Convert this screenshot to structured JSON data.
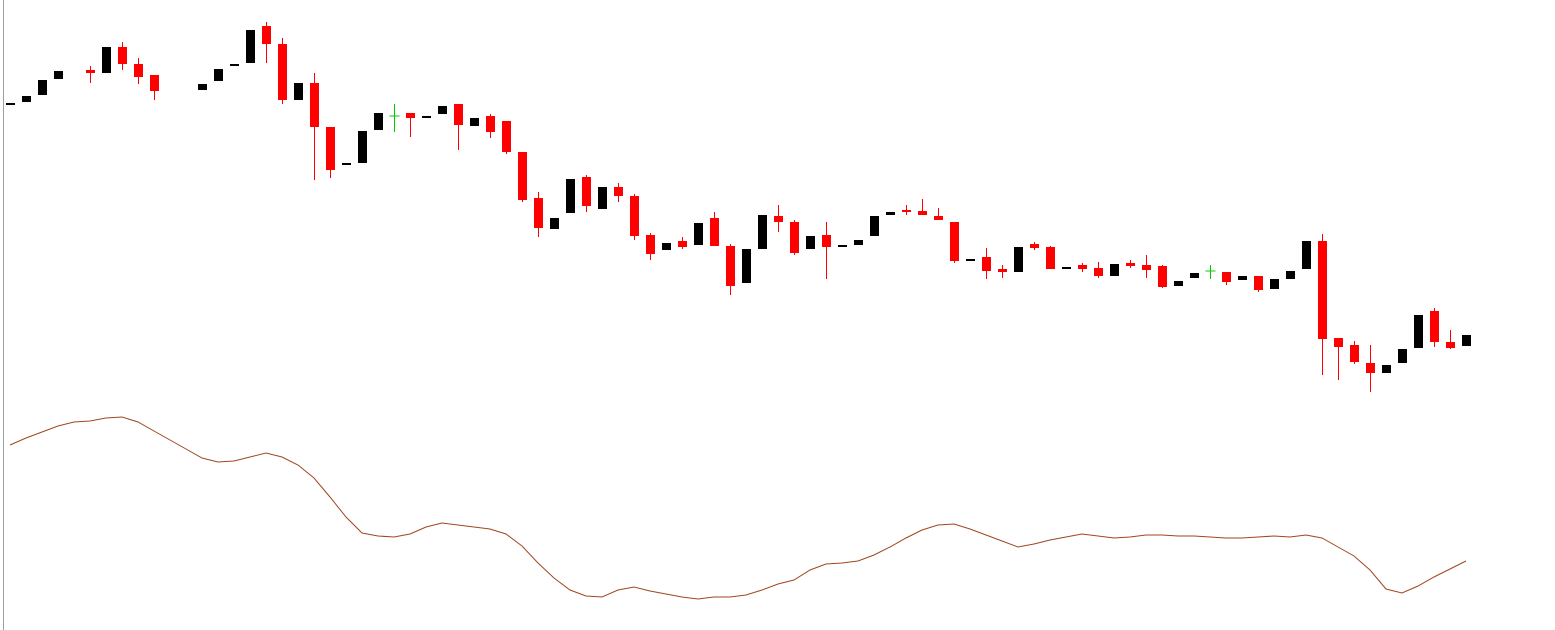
{
  "chart_data": [
    {
      "type": "candlestick",
      "up_color": "#000000",
      "down_color": "#ff0000",
      "doji_color": "#00cc00",
      "ylim": [
        0,
        630
      ],
      "open": [
        526,
        528,
        535,
        551,
        null,
        560,
        557,
        583,
        566,
        555,
        null,
        null,
        540,
        549,
        565,
        567,
        604,
        586,
        530,
        547,
        503,
        466,
        467,
        500,
        514,
        517,
        513,
        516,
        526,
        504,
        514,
        509,
        478,
        432,
        401,
        417,
        453,
        421,
        443,
        434,
        395,
        380,
        389,
        385,
        412,
        384,
        347,
        381,
        414,
        408,
        381,
        395,
        384,
        385,
        394,
        415,
        420,
        419,
        414,
        408,
        370,
        373,
        361,
        358,
        386,
        383,
        362,
        365,
        362,
        354,
        367,
        365,
        364,
        344,
        352,
        359,
        358,
        350,
        354,
        341,
        351,
        361,
        389,
        292,
        285,
        267,
        257,
        267,
        282,
        319,
        288,
        284
      ],
      "high": [
        527,
        534,
        550,
        559,
        null,
        564,
        583,
        588,
        572,
        555,
        null,
        null,
        546,
        561,
        566,
        600,
        608,
        592,
        547,
        557,
        503,
        467,
        499,
        517,
        526,
        517,
        514,
        524,
        526,
        512,
        516,
        509,
        478,
        438,
        412,
        451,
        455,
        443,
        447,
        436,
        397,
        387,
        393,
        407,
        418,
        386,
        381,
        415,
        425,
        410,
        394,
        408,
        385,
        390,
        414,
        418,
        425,
        431,
        422,
        408,
        371,
        382,
        365,
        383,
        388,
        384,
        363,
        367,
        368,
        366,
        370,
        375,
        365,
        349,
        357,
        365,
        358,
        354,
        354,
        351,
        359,
        389,
        396,
        292,
        289,
        285,
        265,
        281,
        315,
        322,
        300,
        295
      ],
      "low": [
        526,
        528,
        535,
        551,
        null,
        547,
        557,
        560,
        546,
        530,
        null,
        null,
        540,
        549,
        565,
        567,
        567,
        526,
        530,
        450,
        452,
        466,
        467,
        500,
        498,
        493,
        513,
        516,
        480,
        504,
        492,
        476,
        428,
        393,
        401,
        417,
        418,
        421,
        428,
        390,
        370,
        380,
        381,
        385,
        384,
        335,
        347,
        381,
        398,
        375,
        381,
        351,
        384,
        385,
        394,
        415,
        415,
        415,
        410,
        367,
        370,
        351,
        352,
        358,
        380,
        361,
        362,
        358,
        352,
        354,
        362,
        352,
        342,
        344,
        352,
        351,
        345,
        350,
        338,
        341,
        351,
        361,
        255,
        250,
        266,
        238,
        257,
        267,
        282,
        283,
        281,
        284
      ],
      "close": [
        527,
        534,
        550,
        559,
        null,
        557,
        583,
        566,
        553,
        539,
        null,
        null,
        546,
        561,
        566,
        600,
        586,
        530,
        547,
        503,
        460,
        467,
        499,
        517,
        514,
        512,
        514,
        524,
        505,
        512,
        498,
        478,
        430,
        402,
        412,
        451,
        424,
        443,
        434,
        394,
        376,
        387,
        383,
        407,
        384,
        344,
        381,
        415,
        408,
        377,
        394,
        383,
        385,
        390,
        414,
        418,
        418,
        415,
        410,
        369,
        371,
        359,
        358,
        383,
        382,
        361,
        363,
        361,
        354,
        366,
        364,
        360,
        343,
        349,
        357,
        359,
        348,
        354,
        340,
        351,
        359,
        389,
        291,
        283,
        268,
        257,
        265,
        281,
        315,
        288,
        282,
        295
      ]
    },
    {
      "type": "line",
      "color": "#a0461e",
      "ylim": [
        0,
        630
      ],
      "values": [
        185,
        192,
        198,
        204,
        208,
        209,
        212,
        213,
        208,
        199,
        190,
        181,
        172,
        168,
        169,
        173,
        177,
        173,
        165,
        152,
        133,
        113,
        97,
        94,
        93,
        96,
        103,
        107,
        105,
        103,
        101,
        96,
        84,
        67,
        52,
        40,
        34,
        33,
        40,
        43,
        39,
        36,
        33,
        31,
        33,
        33,
        35,
        40,
        46,
        50,
        60,
        66,
        67,
        69,
        75,
        83,
        92,
        100,
        105,
        106,
        101,
        95,
        89,
        83,
        86,
        90,
        93,
        96,
        94,
        92,
        93,
        95,
        95,
        94,
        94,
        93,
        92,
        92,
        93,
        94,
        93,
        95,
        92,
        83,
        74,
        60,
        41,
        37,
        44,
        53,
        61,
        69
      ]
    }
  ]
}
